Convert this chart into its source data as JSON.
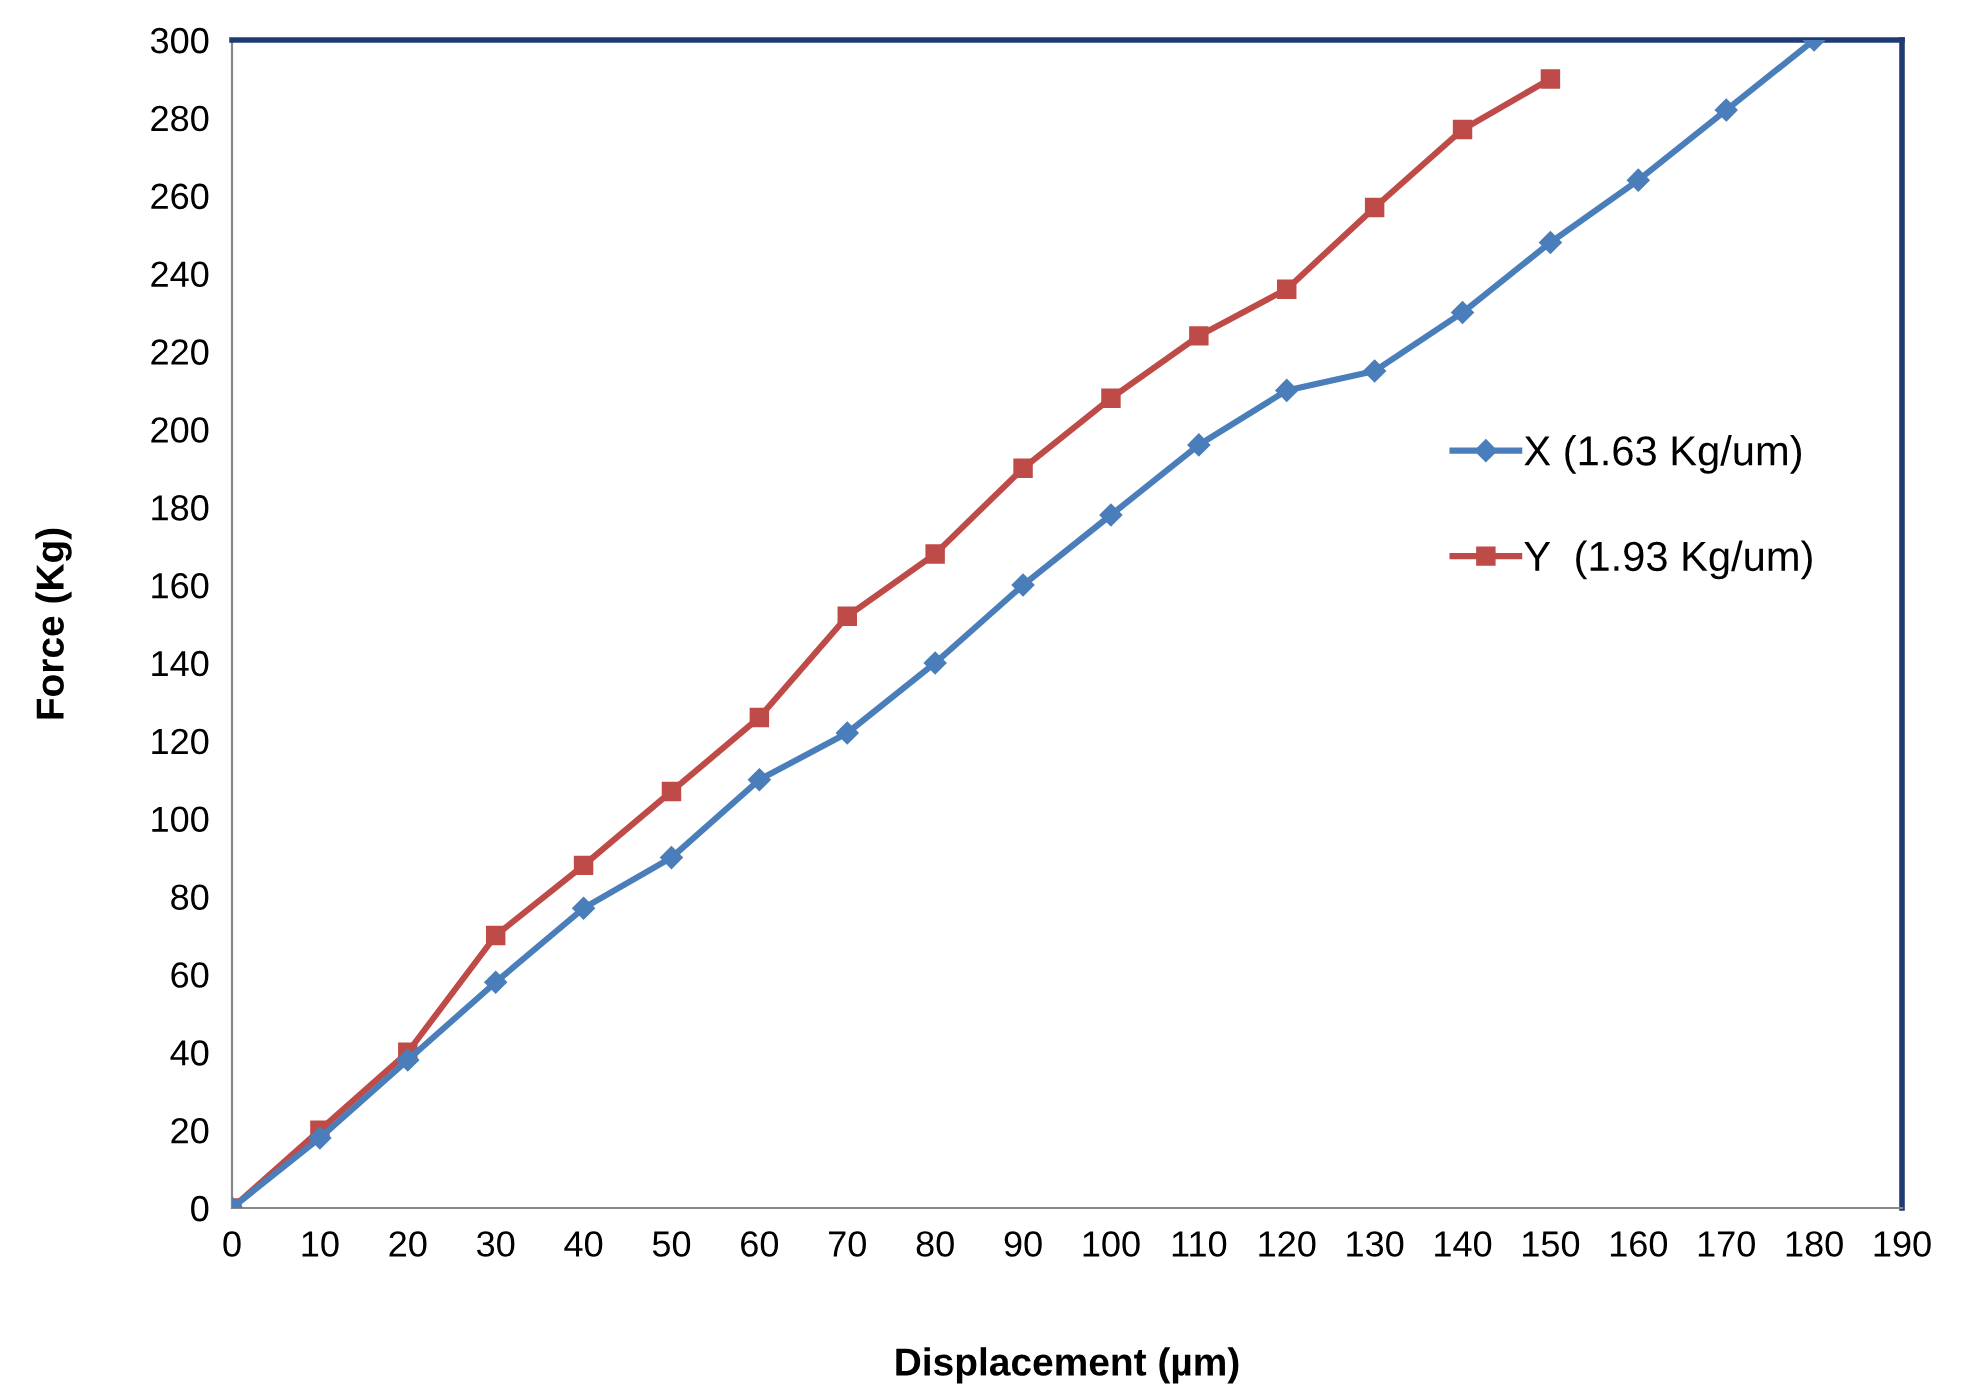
{
  "chart_data": {
    "type": "line",
    "xlabel": "Displacement (µm)",
    "ylabel": "Force (Kg)",
    "x": [
      0,
      10,
      20,
      30,
      40,
      50,
      60,
      70,
      80,
      90,
      100,
      110,
      120,
      130,
      140,
      150,
      160,
      170,
      180
    ],
    "series": [
      {
        "name": "X (1.63 Kg/um)",
        "color": "#4a7ebb",
        "marker": "diamond",
        "values": [
          0,
          18,
          38,
          58,
          77,
          90,
          110,
          122,
          140,
          160,
          178,
          196,
          210,
          215,
          230,
          248,
          264,
          282,
          300
        ]
      },
      {
        "name": "Y  (1.93 Kg/um)",
        "color": "#be4b48",
        "marker": "square",
        "values": [
          0,
          20,
          40,
          70,
          88,
          107,
          126,
          152,
          168,
          190,
          208,
          224,
          236,
          257,
          277,
          290,
          null,
          null,
          null
        ]
      }
    ],
    "xlim": [
      0,
      190
    ],
    "xticks": [
      0,
      10,
      20,
      30,
      40,
      50,
      60,
      70,
      80,
      90,
      100,
      110,
      120,
      130,
      140,
      150,
      160,
      170,
      180,
      190
    ],
    "ylim": [
      0,
      300
    ],
    "yticks": [
      0,
      20,
      40,
      60,
      80,
      100,
      120,
      140,
      160,
      180,
      200,
      220,
      240,
      260,
      280,
      300
    ],
    "grid": false,
    "legend": "right",
    "line_style": "solid"
  }
}
